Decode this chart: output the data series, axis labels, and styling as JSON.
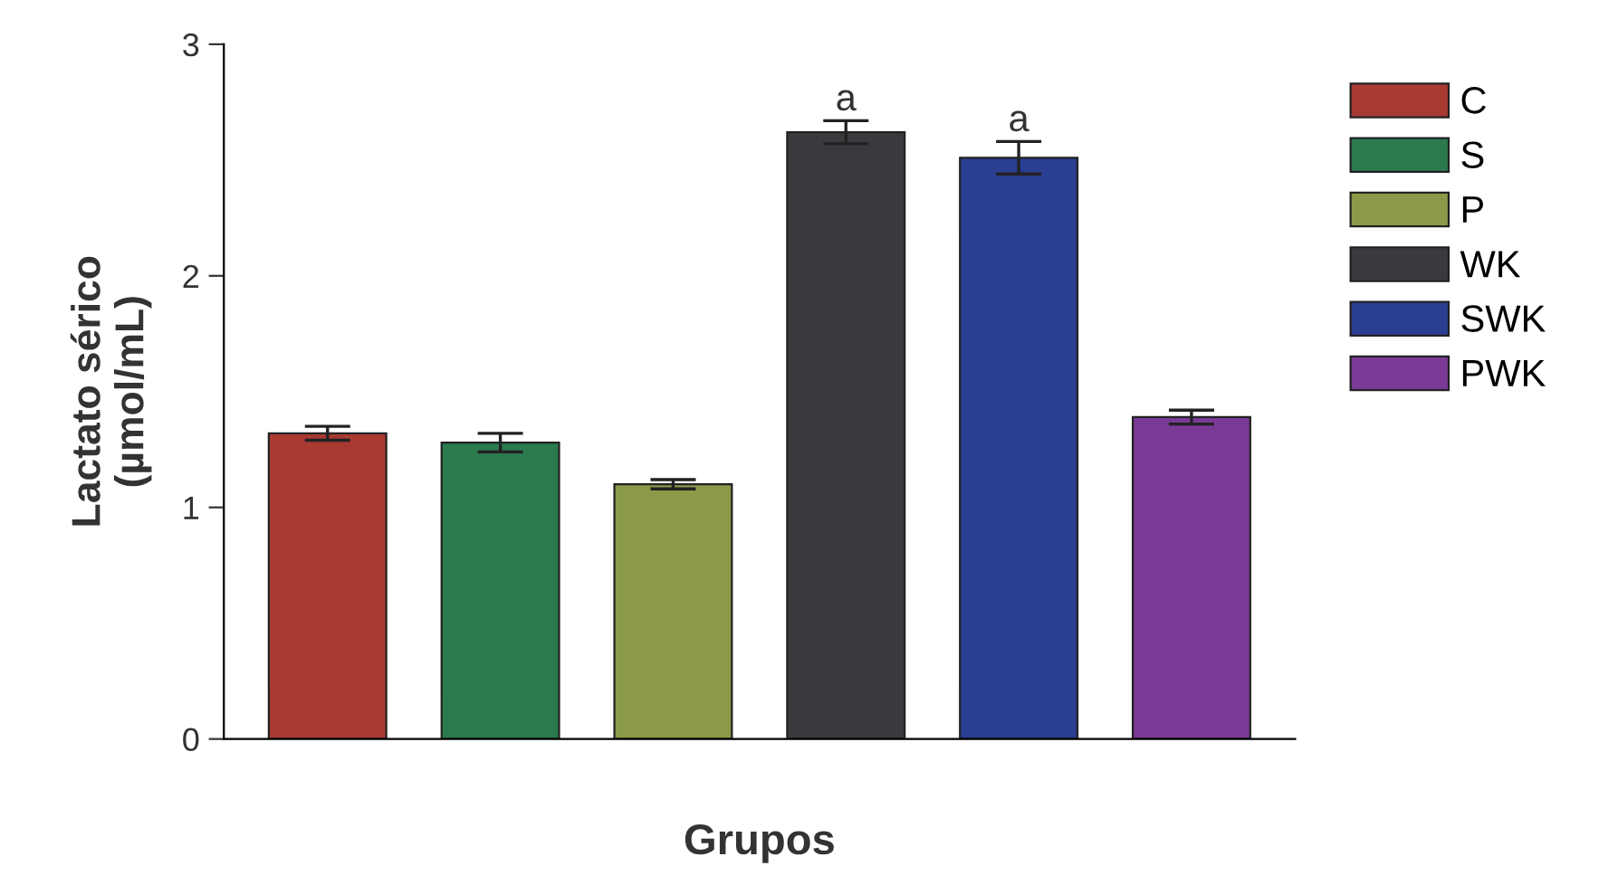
{
  "chart_data": {
    "type": "bar",
    "xlabel": "Grupos",
    "ylabel": "Lactato sérico\n(µmol/mL)",
    "categories": [
      null,
      null,
      null,
      null,
      null,
      null
    ],
    "series": [
      {
        "name": "C",
        "color": "#a83a32",
        "values": [
          1.32,
          null,
          null,
          null,
          null,
          null
        ],
        "errors": [
          0.03,
          null,
          null,
          null,
          null,
          null
        ]
      },
      {
        "name": "S",
        "color": "#2a7a4e",
        "values": [
          null,
          1.28,
          null,
          null,
          null,
          null
        ],
        "errors": [
          null,
          0.04,
          null,
          null,
          null,
          null
        ]
      },
      {
        "name": "P",
        "color": "#8a9a48",
        "values": [
          null,
          null,
          1.1,
          null,
          null,
          null
        ],
        "errors": [
          null,
          null,
          0.02,
          null,
          null,
          null
        ]
      },
      {
        "name": "WK",
        "color": "#3a3a3e",
        "values": [
          null,
          null,
          null,
          2.62,
          null,
          null
        ],
        "errors": [
          null,
          null,
          null,
          0.05,
          null,
          null
        ],
        "value_labels": [
          null,
          null,
          null,
          "a",
          null,
          null
        ]
      },
      {
        "name": "SWK",
        "color": "#2a3e92",
        "values": [
          null,
          null,
          null,
          null,
          2.51,
          null
        ],
        "errors": [
          null,
          null,
          null,
          null,
          0.07,
          null
        ],
        "value_labels": [
          null,
          null,
          null,
          null,
          "a",
          null
        ]
      },
      {
        "name": "PWK",
        "color": "#7a3a96",
        "values": [
          null,
          null,
          null,
          null,
          null,
          1.39
        ],
        "errors": [
          null,
          null,
          null,
          null,
          null,
          0.03
        ]
      }
    ],
    "ylim": [
      0,
      3
    ],
    "yticks": [
      0,
      1,
      2,
      3
    ],
    "grid": false,
    "legend": "right"
  }
}
